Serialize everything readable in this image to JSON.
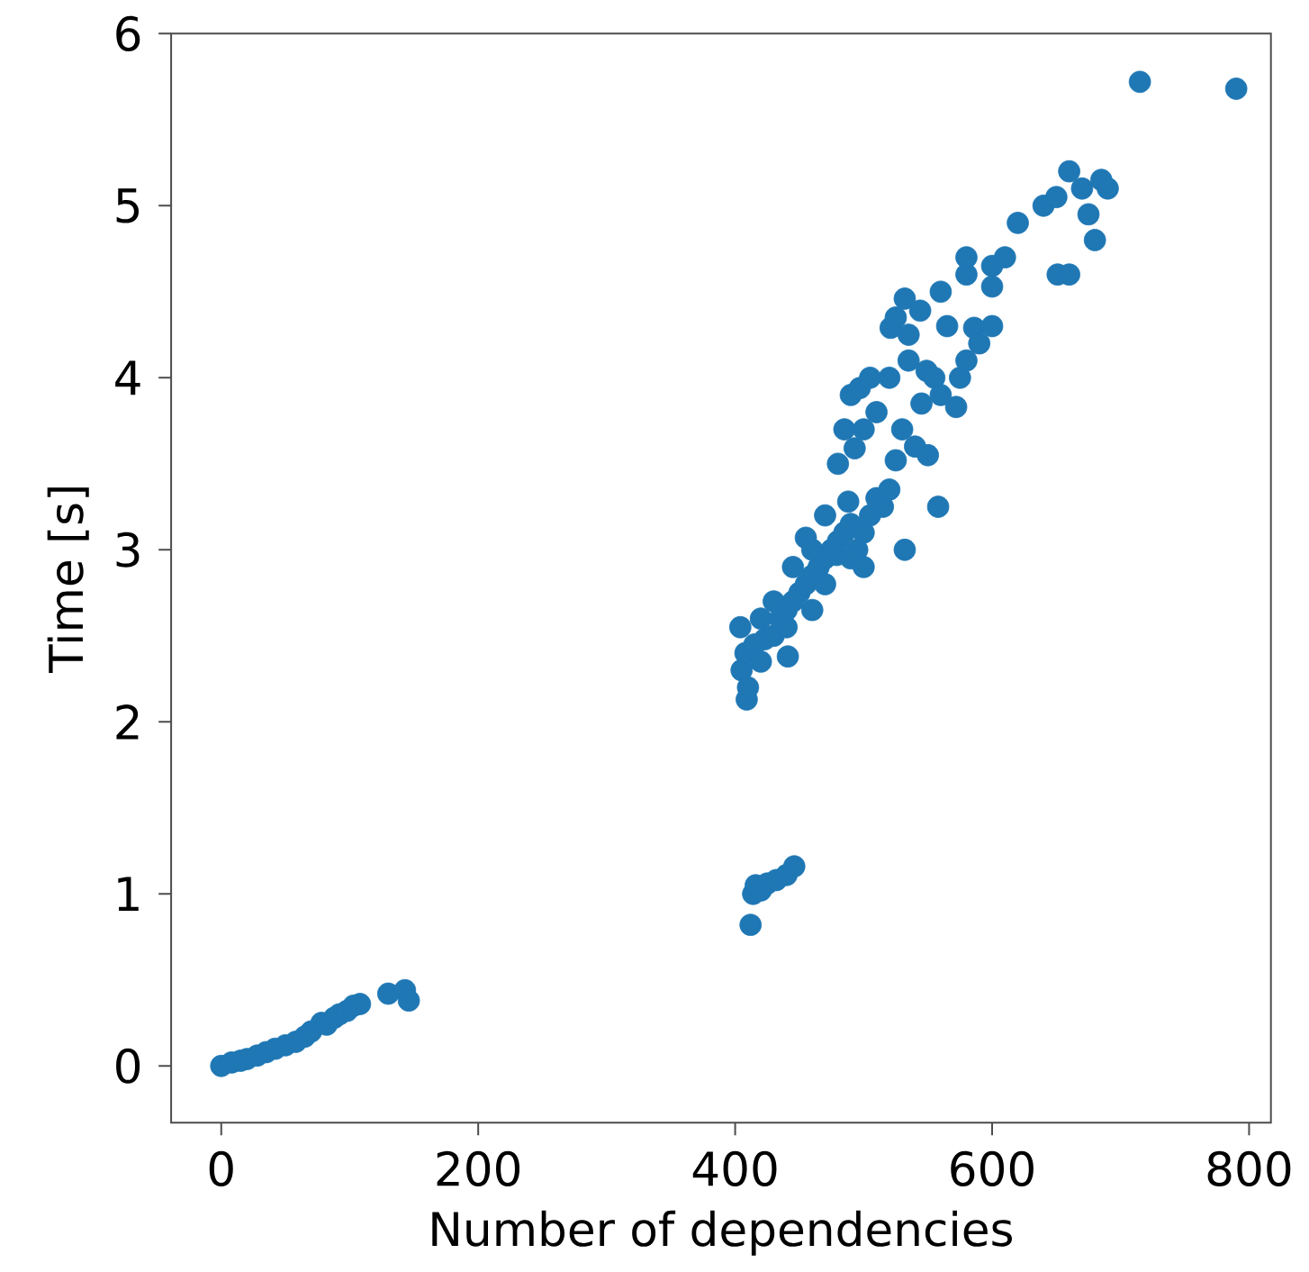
{
  "chart_data": {
    "type": "scatter",
    "xlabel": "Number of dependencies",
    "ylabel": "Time [s]",
    "xlim": [
      -39,
      817
    ],
    "ylim": [
      -0.33,
      6
    ],
    "xticks": [
      0,
      200,
      400,
      600,
      800
    ],
    "yticks": [
      0,
      1,
      2,
      3,
      4,
      5,
      6
    ],
    "marker": "circle",
    "series": [
      {
        "color": "#1f77b4",
        "x": [
          0,
          8,
          15,
          20,
          28,
          35,
          42,
          50,
          58,
          65,
          70,
          78,
          82,
          88,
          92,
          98,
          103,
          108,
          130,
          143,
          146,
          412,
          414,
          416,
          420,
          425,
          432,
          440,
          446,
          409,
          404,
          455,
          488,
          493,
          497,
          521,
          532,
          544,
          558,
          532,
          572,
          586,
          600,
          651,
          549,
          525,
          479,
          441,
          423,
          560,
          580,
          600,
          610,
          620,
          640,
          650,
          660,
          660,
          670,
          675,
          680,
          685,
          690,
          715,
          790,
          580,
          590,
          600,
          580,
          575,
          405,
          408,
          410,
          415,
          420,
          430,
          435,
          440,
          445,
          450,
          455,
          460,
          465,
          470,
          475,
          480,
          485,
          490,
          495,
          500,
          505,
          510,
          515,
          520,
          460,
          470,
          480,
          485,
          490,
          500,
          505,
          510,
          520,
          530,
          540,
          550,
          545,
          535,
          555,
          560,
          565,
          525,
          535,
          420,
          430,
          445,
          440,
          460,
          470,
          490,
          500
        ],
        "values": [
          0.0,
          0.02,
          0.03,
          0.04,
          0.06,
          0.08,
          0.1,
          0.12,
          0.14,
          0.17,
          0.2,
          0.25,
          0.24,
          0.28,
          0.3,
          0.32,
          0.35,
          0.36,
          0.42,
          0.44,
          0.38,
          0.82,
          1.0,
          1.05,
          1.02,
          1.06,
          1.08,
          1.11,
          1.16,
          2.13,
          2.55,
          3.07,
          3.28,
          3.59,
          3.94,
          4.29,
          4.46,
          4.39,
          3.25,
          3.0,
          3.83,
          4.29,
          4.53,
          4.6,
          4.04,
          3.52,
          2.97,
          2.38,
          2.48,
          4.5,
          4.6,
          4.65,
          4.7,
          4.9,
          5.0,
          5.05,
          4.6,
          5.2,
          5.1,
          4.95,
          4.8,
          5.15,
          5.1,
          5.72,
          5.68,
          4.7,
          4.2,
          4.3,
          4.1,
          4.0,
          2.3,
          2.4,
          2.2,
          2.45,
          2.35,
          2.5,
          2.6,
          2.65,
          2.7,
          2.75,
          2.8,
          2.85,
          2.9,
          2.95,
          3.0,
          3.05,
          3.1,
          3.15,
          3.0,
          3.1,
          3.2,
          3.3,
          3.25,
          3.35,
          3.0,
          3.2,
          3.5,
          3.7,
          3.9,
          3.7,
          4.0,
          3.8,
          4.0,
          3.7,
          3.6,
          3.55,
          3.85,
          4.1,
          4.0,
          3.9,
          4.3,
          4.35,
          4.25,
          2.6,
          2.7,
          2.9,
          2.55,
          2.65,
          2.8,
          2.95,
          2.9
        ]
      }
    ]
  }
}
